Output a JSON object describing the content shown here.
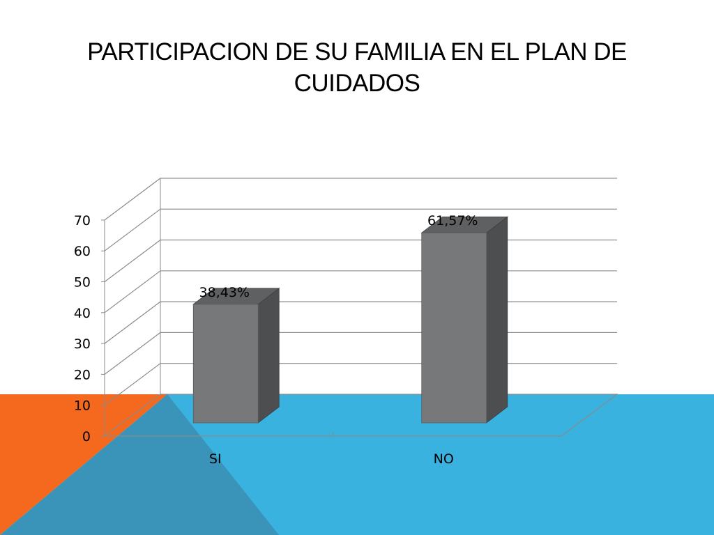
{
  "title": "PARTICIPACION DE SU FAMILIA EN EL PLAN DE CUIDADOS",
  "colors": {
    "orange": "#f5691e",
    "blue": "#3ab2e0",
    "overlap": "#3a93b8",
    "bar_front": "#77787a",
    "bar_side": "#4d4e50",
    "bar_top": "#5f6062",
    "grid": "#8a8a8a"
  },
  "chart_data": {
    "type": "bar",
    "style": "3d-column",
    "title": "PARTICIPACION DE SU FAMILIA EN EL PLAN DE CUIDADOS",
    "categories": [
      "SI",
      "NO"
    ],
    "values": [
      38.43,
      61.57
    ],
    "data_labels": [
      "38,43%",
      "61,57%"
    ],
    "yticks": [
      0,
      10,
      20,
      30,
      40,
      50,
      60,
      70
    ],
    "ylim": [
      0,
      70
    ],
    "grid": true,
    "legend": "none",
    "xlabel": "",
    "ylabel": ""
  }
}
